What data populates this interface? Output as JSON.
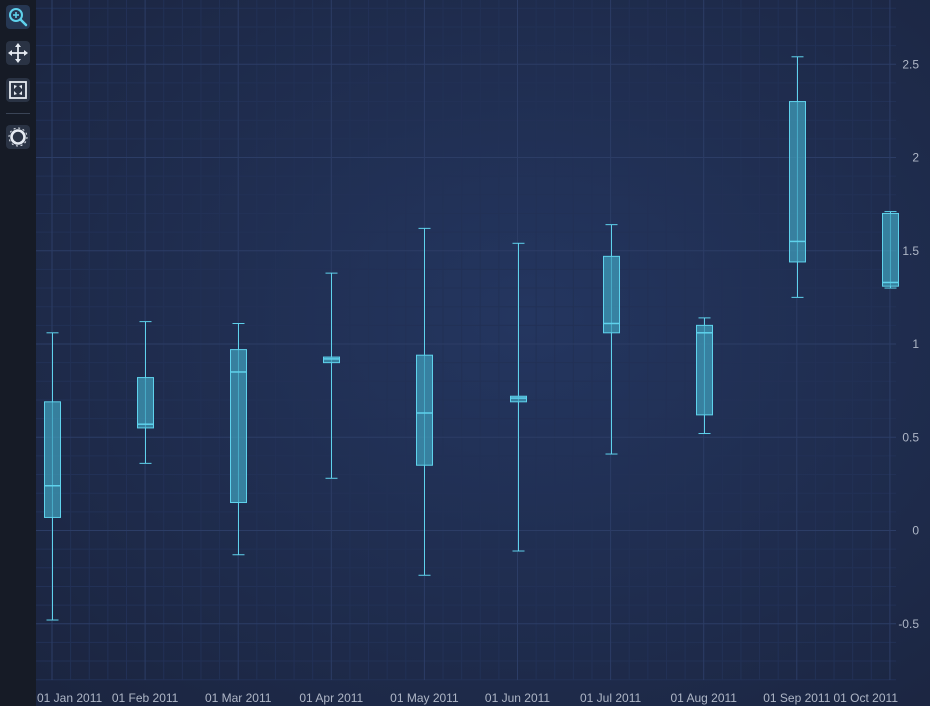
{
  "toolbar": {
    "tools": [
      {
        "name": "zoom-icon",
        "active": true
      },
      {
        "name": "pan-icon",
        "active": false
      },
      {
        "name": "zoom-extents-icon",
        "active": false
      },
      {
        "name": "rollover-icon",
        "active": false
      }
    ]
  },
  "chart_data": {
    "type": "box",
    "title": "",
    "xlabel": "",
    "ylabel": "",
    "ylim": [
      -0.8,
      2.8
    ],
    "y_ticks": [
      -0.5,
      0,
      0.5,
      1,
      1.5,
      2,
      2.5
    ],
    "y_axis_position": "right",
    "grid": true,
    "colors": {
      "box_fill": "#3f9cba",
      "line": "#5fd2ec",
      "tick_label": "#aeb6c6"
    },
    "categories": [
      "01 Jan 2011",
      "01 Feb 2011",
      "01 Mar 2011",
      "01 Apr 2011",
      "01 May 2011",
      "01 Jun 2011",
      "01 Jul 2011",
      "01 Aug 2011",
      "01 Sep 2011",
      "01 Oct 2011"
    ],
    "series": [
      {
        "min": -0.48,
        "q1": 0.07,
        "median": 0.24,
        "q3": 0.69,
        "max": 1.06
      },
      {
        "min": 0.36,
        "q1": 0.55,
        "median": 0.57,
        "q3": 0.82,
        "max": 1.12
      },
      {
        "min": -0.13,
        "q1": 0.15,
        "median": 0.85,
        "q3": 0.97,
        "max": 1.11
      },
      {
        "min": 0.28,
        "q1": 0.9,
        "median": 0.92,
        "q3": 0.93,
        "max": 1.38
      },
      {
        "min": -0.24,
        "q1": 0.35,
        "median": 0.63,
        "q3": 0.94,
        "max": 1.62
      },
      {
        "min": -0.11,
        "q1": 0.69,
        "median": 0.71,
        "q3": 0.72,
        "max": 1.54
      },
      {
        "min": 0.41,
        "q1": 1.06,
        "median": 1.11,
        "q3": 1.47,
        "max": 1.64
      },
      {
        "min": 0.52,
        "q1": 0.62,
        "median": 1.06,
        "q3": 1.1,
        "max": 1.14
      },
      {
        "min": 1.25,
        "q1": 1.44,
        "median": 1.55,
        "q3": 2.3,
        "max": 2.54
      },
      {
        "min": 1.3,
        "q1": 1.31,
        "median": 1.33,
        "q3": 1.7,
        "max": 1.71
      }
    ]
  }
}
